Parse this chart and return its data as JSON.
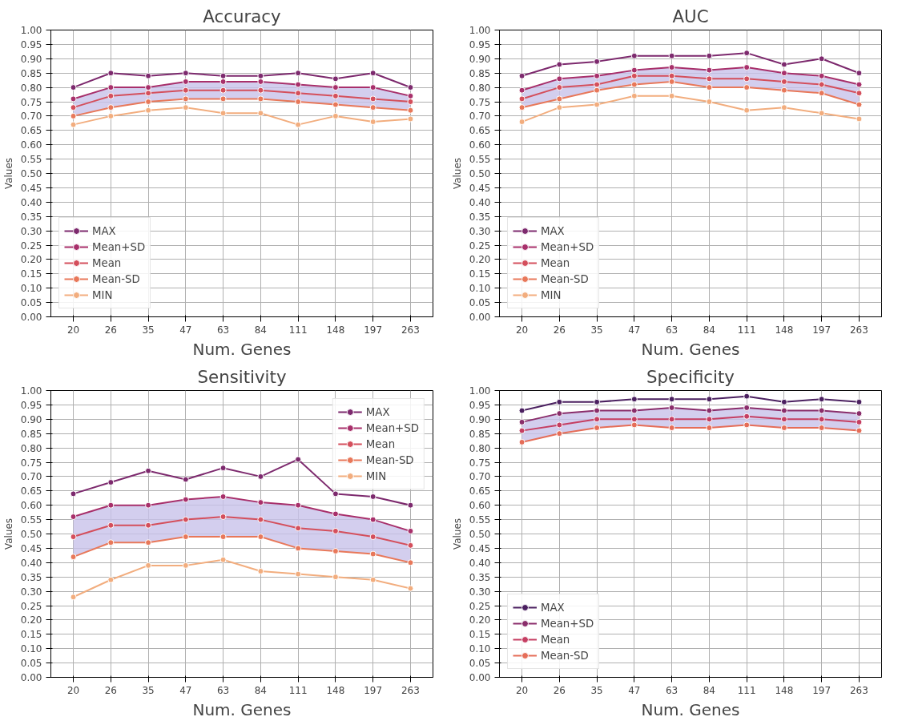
{
  "chart_data": [
    {
      "type": "line",
      "title": "Accuracy",
      "xlabel": "Num. Genes",
      "ylabel": "Values",
      "categories": [
        "20",
        "26",
        "35",
        "47",
        "63",
        "84",
        "111",
        "148",
        "197",
        "263"
      ],
      "ylim": [
        0,
        1
      ],
      "yticks": [
        {
          "value": 0,
          "label": "0.00"
        },
        {
          "value": 0.05,
          "label": "0.05"
        },
        {
          "value": 0.1,
          "label": "0.10"
        },
        {
          "value": 0.15,
          "label": "0.15"
        },
        {
          "value": 0.2,
          "label": "0.20"
        },
        {
          "value": 0.25,
          "label": "0.25"
        },
        {
          "value": 0.3,
          "label": "0.30"
        },
        {
          "value": 0.35,
          "label": "0.35"
        },
        {
          "value": 0.4,
          "label": "0.40"
        },
        {
          "value": 0.45,
          "label": "0.45"
        },
        {
          "value": 0.5,
          "label": "0.50"
        },
        {
          "value": 0.55,
          "label": "0.55"
        },
        {
          "value": 0.6,
          "label": "0.60"
        },
        {
          "value": 0.65,
          "label": "0.65"
        },
        {
          "value": 0.7,
          "label": "0.70"
        },
        {
          "value": 0.75,
          "label": "0.75"
        },
        {
          "value": 0.8,
          "label": "0.80"
        },
        {
          "value": 0.85,
          "label": "0.85"
        },
        {
          "value": 0.9,
          "label": "0.90"
        },
        {
          "value": 0.95,
          "label": "0.95"
        },
        {
          "value": 1,
          "label": "1.00"
        }
      ],
      "grid": true,
      "legend": "bottom left",
      "marker": "circle",
      "line_style": "solid",
      "series": [
        {
          "name": "MAX",
          "color": "#7d2a6e",
          "values": [
            0.8,
            0.85,
            0.84,
            0.85,
            0.84,
            0.84,
            0.85,
            0.83,
            0.85,
            0.8
          ]
        },
        {
          "name": "Mean+SD",
          "color": "#a8306b",
          "values": [
            0.76,
            0.8,
            0.8,
            0.82,
            0.82,
            0.82,
            0.81,
            0.8,
            0.8,
            0.77
          ]
        },
        {
          "name": "Mean",
          "color": "#d44f5c",
          "values": [
            0.73,
            0.77,
            0.78,
            0.79,
            0.79,
            0.79,
            0.78,
            0.77,
            0.76,
            0.75
          ],
          "lower": [
            0.7,
            0.73,
            0.75,
            0.76,
            0.76,
            0.76,
            0.75,
            0.74,
            0.73,
            0.72
          ],
          "upper": [
            0.76,
            0.8,
            0.8,
            0.82,
            0.82,
            0.82,
            0.81,
            0.8,
            0.8,
            0.77
          ]
        },
        {
          "name": "Mean-SD",
          "color": "#e8785a",
          "values": [
            0.7,
            0.73,
            0.75,
            0.76,
            0.76,
            0.76,
            0.75,
            0.74,
            0.73,
            0.72
          ]
        },
        {
          "name": "MIN",
          "color": "#f2ad7e",
          "values": [
            0.67,
            0.7,
            0.72,
            0.73,
            0.71,
            0.71,
            0.67,
            0.7,
            0.68,
            0.69
          ]
        }
      ]
    },
    {
      "type": "line",
      "title": "AUC",
      "xlabel": "Num. Genes",
      "ylabel": "Values",
      "categories": [
        "20",
        "26",
        "35",
        "47",
        "63",
        "84",
        "111",
        "148",
        "197",
        "263"
      ],
      "ylim": [
        0,
        1
      ],
      "yticks": [
        {
          "value": 0,
          "label": "0.00"
        },
        {
          "value": 0.05,
          "label": "0.05"
        },
        {
          "value": 0.1,
          "label": "0.10"
        },
        {
          "value": 0.15,
          "label": "0.15"
        },
        {
          "value": 0.2,
          "label": "0.20"
        },
        {
          "value": 0.25,
          "label": "0.25"
        },
        {
          "value": 0.3,
          "label": "0.30"
        },
        {
          "value": 0.35,
          "label": "0.35"
        },
        {
          "value": 0.4,
          "label": "0.40"
        },
        {
          "value": 0.45,
          "label": "0.45"
        },
        {
          "value": 0.5,
          "label": "0.50"
        },
        {
          "value": 0.55,
          "label": "0.55"
        },
        {
          "value": 0.6,
          "label": "0.60"
        },
        {
          "value": 0.65,
          "label": "0.65"
        },
        {
          "value": 0.7,
          "label": "0.70"
        },
        {
          "value": 0.75,
          "label": "0.75"
        },
        {
          "value": 0.8,
          "label": "0.80"
        },
        {
          "value": 0.85,
          "label": "0.85"
        },
        {
          "value": 0.9,
          "label": "0.90"
        },
        {
          "value": 0.95,
          "label": "0.95"
        },
        {
          "value": 1,
          "label": "1.00"
        }
      ],
      "grid": true,
      "legend": "bottom left",
      "marker": "circle",
      "line_style": "solid",
      "series": [
        {
          "name": "MAX",
          "color": "#7d2a6e",
          "values": [
            0.84,
            0.88,
            0.89,
            0.91,
            0.91,
            0.91,
            0.92,
            0.88,
            0.9,
            0.85
          ]
        },
        {
          "name": "Mean+SD",
          "color": "#a8306b",
          "values": [
            0.79,
            0.83,
            0.84,
            0.86,
            0.87,
            0.86,
            0.87,
            0.85,
            0.84,
            0.81
          ]
        },
        {
          "name": "Mean",
          "color": "#d44f5c",
          "values": [
            0.76,
            0.8,
            0.81,
            0.84,
            0.84,
            0.83,
            0.83,
            0.82,
            0.81,
            0.78
          ],
          "lower": [
            0.73,
            0.76,
            0.79,
            0.81,
            0.82,
            0.8,
            0.8,
            0.79,
            0.78,
            0.74
          ],
          "upper": [
            0.79,
            0.83,
            0.84,
            0.86,
            0.87,
            0.86,
            0.87,
            0.85,
            0.84,
            0.81
          ]
        },
        {
          "name": "Mean-SD",
          "color": "#e8785a",
          "values": [
            0.73,
            0.76,
            0.79,
            0.81,
            0.82,
            0.8,
            0.8,
            0.79,
            0.78,
            0.74
          ]
        },
        {
          "name": "MIN",
          "color": "#f2ad7e",
          "values": [
            0.68,
            0.73,
            0.74,
            0.77,
            0.77,
            0.75,
            0.72,
            0.73,
            0.71,
            0.69
          ]
        }
      ]
    },
    {
      "type": "line",
      "title": "Sensitivity",
      "xlabel": "Num. Genes",
      "ylabel": "Values",
      "categories": [
        "20",
        "26",
        "35",
        "47",
        "63",
        "84",
        "111",
        "148",
        "197",
        "263"
      ],
      "ylim": [
        0,
        1
      ],
      "yticks": [
        {
          "value": 0,
          "label": "0.00"
        },
        {
          "value": 0.05,
          "label": "0.05"
        },
        {
          "value": 0.1,
          "label": "0.10"
        },
        {
          "value": 0.15,
          "label": "0.15"
        },
        {
          "value": 0.2,
          "label": "0.20"
        },
        {
          "value": 0.25,
          "label": "0.25"
        },
        {
          "value": 0.3,
          "label": "0.30"
        },
        {
          "value": 0.35,
          "label": "0.35"
        },
        {
          "value": 0.4,
          "label": "0.40"
        },
        {
          "value": 0.45,
          "label": "0.45"
        },
        {
          "value": 0.5,
          "label": "0.50"
        },
        {
          "value": 0.55,
          "label": "0.55"
        },
        {
          "value": 0.6,
          "label": "0.60"
        },
        {
          "value": 0.65,
          "label": "0.65"
        },
        {
          "value": 0.7,
          "label": "0.70"
        },
        {
          "value": 0.75,
          "label": "0.75"
        },
        {
          "value": 0.8,
          "label": "0.80"
        },
        {
          "value": 0.85,
          "label": "0.85"
        },
        {
          "value": 0.9,
          "label": "0.90"
        },
        {
          "value": 0.95,
          "label": "0.95"
        },
        {
          "value": 1,
          "label": "1.00"
        }
      ],
      "grid": true,
      "legend": "top right",
      "marker": "circle",
      "line_style": "solid",
      "series": [
        {
          "name": "MAX",
          "color": "#7d2a6e",
          "values": [
            0.64,
            0.68,
            0.72,
            0.69,
            0.73,
            0.7,
            0.76,
            0.64,
            0.63,
            0.6
          ]
        },
        {
          "name": "Mean+SD",
          "color": "#a8306b",
          "values": [
            0.56,
            0.6,
            0.6,
            0.62,
            0.63,
            0.61,
            0.6,
            0.57,
            0.55,
            0.51
          ]
        },
        {
          "name": "Mean",
          "color": "#d44f5c",
          "values": [
            0.49,
            0.53,
            0.53,
            0.55,
            0.56,
            0.55,
            0.52,
            0.51,
            0.49,
            0.46
          ],
          "lower": [
            0.42,
            0.47,
            0.47,
            0.49,
            0.49,
            0.49,
            0.45,
            0.44,
            0.43,
            0.4
          ],
          "upper": [
            0.56,
            0.6,
            0.6,
            0.62,
            0.63,
            0.61,
            0.6,
            0.57,
            0.55,
            0.51
          ]
        },
        {
          "name": "Mean-SD",
          "color": "#e8785a",
          "values": [
            0.42,
            0.47,
            0.47,
            0.49,
            0.49,
            0.49,
            0.45,
            0.44,
            0.43,
            0.4
          ]
        },
        {
          "name": "MIN",
          "color": "#f2ad7e",
          "values": [
            0.28,
            0.34,
            0.39,
            0.39,
            0.41,
            0.37,
            0.36,
            0.35,
            0.34,
            0.31
          ]
        }
      ]
    },
    {
      "type": "line",
      "title": "Specificity",
      "xlabel": "Num. Genes",
      "ylabel": "Values",
      "categories": [
        "20",
        "26",
        "35",
        "47",
        "63",
        "84",
        "111",
        "148",
        "197",
        "263"
      ],
      "ylim": [
        0,
        1
      ],
      "yticks": [
        {
          "value": 0,
          "label": "0.00"
        },
        {
          "value": 0.05,
          "label": "0.05"
        },
        {
          "value": 0.1,
          "label": "0.10"
        },
        {
          "value": 0.15,
          "label": "0.15"
        },
        {
          "value": 0.2,
          "label": "0.20"
        },
        {
          "value": 0.25,
          "label": "0.25"
        },
        {
          "value": 0.3,
          "label": "0.30"
        },
        {
          "value": 0.35,
          "label": "0.35"
        },
        {
          "value": 0.4,
          "label": "0.40"
        },
        {
          "value": 0.45,
          "label": "0.45"
        },
        {
          "value": 0.5,
          "label": "0.50"
        },
        {
          "value": 0.55,
          "label": "0.55"
        },
        {
          "value": 0.6,
          "label": "0.60"
        },
        {
          "value": 0.65,
          "label": "0.65"
        },
        {
          "value": 0.7,
          "label": "0.70"
        },
        {
          "value": 0.75,
          "label": "0.75"
        },
        {
          "value": 0.8,
          "label": "0.80"
        },
        {
          "value": 0.85,
          "label": "0.85"
        },
        {
          "value": 0.9,
          "label": "0.90"
        },
        {
          "value": 0.95,
          "label": "0.95"
        },
        {
          "value": 1,
          "label": "1.00"
        }
      ],
      "grid": true,
      "legend": "bottom left",
      "marker": "circle",
      "line_style": "solid",
      "series": [
        {
          "name": "MAX",
          "color": "#4b2060",
          "values": [
            0.93,
            0.96,
            0.96,
            0.97,
            0.97,
            0.97,
            0.98,
            0.96,
            0.97,
            0.96
          ]
        },
        {
          "name": "Mean+SD",
          "color": "#8a2d6b",
          "values": [
            0.89,
            0.92,
            0.93,
            0.93,
            0.94,
            0.93,
            0.94,
            0.93,
            0.93,
            0.92
          ]
        },
        {
          "name": "Mean",
          "color": "#c53e62",
          "values": [
            0.86,
            0.88,
            0.9,
            0.9,
            0.9,
            0.9,
            0.91,
            0.9,
            0.9,
            0.89
          ],
          "lower": [
            0.82,
            0.85,
            0.87,
            0.88,
            0.87,
            0.87,
            0.88,
            0.87,
            0.87,
            0.86
          ],
          "upper": [
            0.89,
            0.92,
            0.93,
            0.93,
            0.94,
            0.93,
            0.94,
            0.93,
            0.93,
            0.92
          ]
        },
        {
          "name": "Mean-SD",
          "color": "#e56d58",
          "values": [
            0.82,
            0.85,
            0.87,
            0.88,
            0.87,
            0.87,
            0.88,
            0.87,
            0.87,
            0.86
          ]
        }
      ]
    }
  ]
}
